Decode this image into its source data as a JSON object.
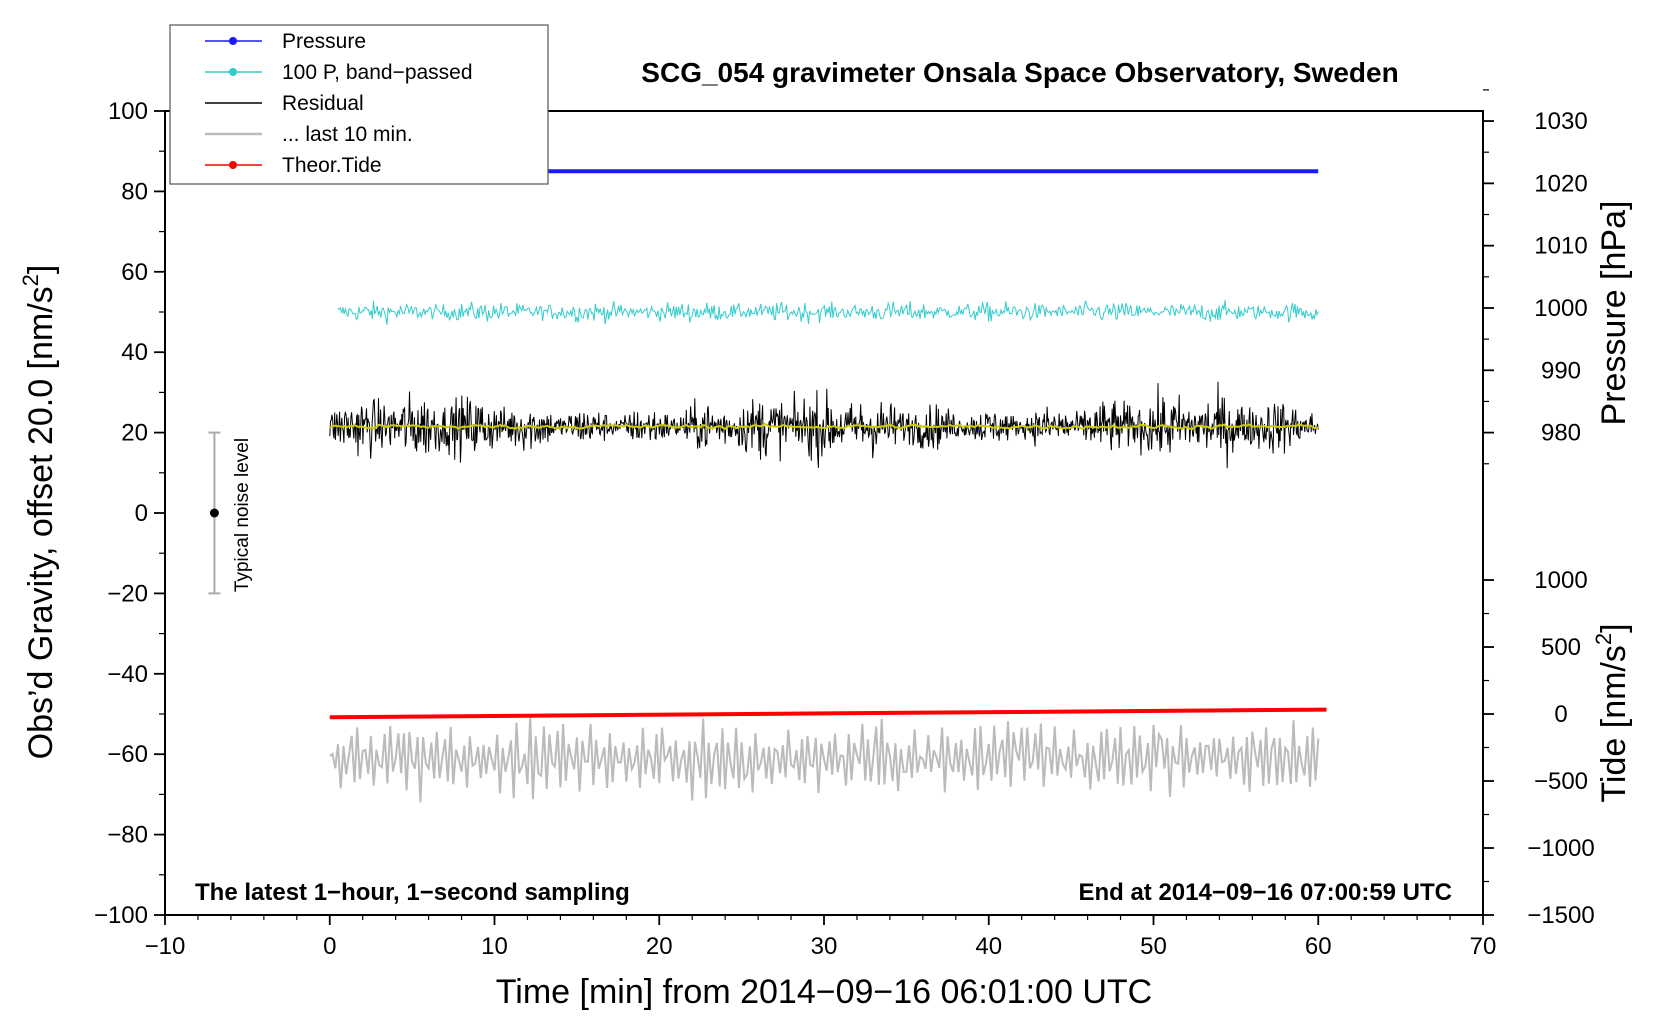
{
  "chart_data": {
    "type": "line",
    "title": "SCG_054 gravimeter Onsala Space Observatory, Sweden",
    "xlabel": "Time [min] from 2014−09−16 06:01:00 UTC",
    "ylabel": "Obs’d Gravity, offset 20.0 [nm/s",
    "ylabel_sup": "2",
    "ylabel_end": "]",
    "xlim": [
      -10,
      70
    ],
    "ylim": [
      -100,
      100
    ],
    "xticks": [
      -10,
      0,
      10,
      20,
      30,
      40,
      50,
      60,
      70
    ],
    "xtick_labels": [
      "−10",
      "0",
      "10",
      "20",
      "30",
      "40",
      "50",
      "60",
      "70"
    ],
    "yticks": [
      -100,
      -80,
      -60,
      -40,
      -20,
      0,
      20,
      40,
      60,
      80,
      100
    ],
    "ytick_labels": [
      "−100",
      "−80",
      "−60",
      "−40",
      "−20",
      "0",
      "20",
      "40",
      "60",
      "80",
      "100"
    ],
    "pressure_axis": {
      "label": "Pressure [hPa]",
      "ticks": [
        980,
        990,
        1000,
        1010,
        1020,
        1030
      ],
      "tick_labels": [
        "980",
        "990",
        "1000",
        "1010",
        "1020",
        "1030"
      ],
      "gravity_at_980": 20,
      "gravity_per_hPa": 1.55
    },
    "tide_axis": {
      "label": "Tide [nm/s",
      "label_sup": "2",
      "label_end": "]",
      "ticks": [
        -1500,
        -1000,
        -500,
        0,
        500,
        1000
      ],
      "tick_labels": [
        "−1500",
        "−1000",
        "−500",
        "0",
        "500",
        "1000"
      ],
      "gravity_at_minus1500": -100,
      "gravity_per_unit": 0.03333
    },
    "legend": [
      {
        "label": "Pressure",
        "color": "#1a1aff",
        "marker": true
      },
      {
        "label": "100 P, band−passed",
        "color": "#33cccc",
        "marker": true
      },
      {
        "label": "Residual",
        "color": "#000000",
        "marker": false
      },
      {
        "label": "... last 10 min.",
        "color": "#bbbbbb",
        "marker": false
      },
      {
        "label": "Theor.Tide",
        "color": "#ff0000",
        "marker": true
      }
    ],
    "series": [
      {
        "name": "Pressure",
        "color": "#1a1aff",
        "x_range": [
          0,
          60
        ],
        "level_gravity": 85,
        "pressure_hPa": 1022.5
      },
      {
        "name": "100 P, band−passed",
        "color": "#33cccc",
        "x_range": [
          0.5,
          60
        ],
        "center": 50,
        "amplitude": 3.5,
        "points": 800
      },
      {
        "name": "Residual",
        "color": "#000000",
        "x_range": [
          0,
          60
        ],
        "center": 21.5,
        "amplitude": 9,
        "points": 1400
      },
      {
        "name": "Residual smoothed",
        "color": "#cccc00",
        "x_range": [
          0,
          60
        ],
        "center": 21.5,
        "amplitude": 0.8,
        "points": 400
      },
      {
        "name": "... last 10 min.",
        "color": "#bbbbbb",
        "x_range": [
          0,
          60
        ],
        "center": -61,
        "amplitude": 8,
        "points": 360
      },
      {
        "name": "Theor.Tide",
        "color": "#ff0000",
        "x": [
          0,
          60.5
        ],
        "gravity": [
          -50.8,
          -48.9
        ],
        "tide": [
          -20,
          35
        ]
      }
    ],
    "noise_level": {
      "label": "Typical noise level",
      "x": -7,
      "center": 0,
      "low": -20,
      "high": 20
    },
    "annotations": {
      "left": "The latest 1−hour, 1−second sampling",
      "right": "End at 2014−09−16 07:00:59 UTC"
    }
  }
}
